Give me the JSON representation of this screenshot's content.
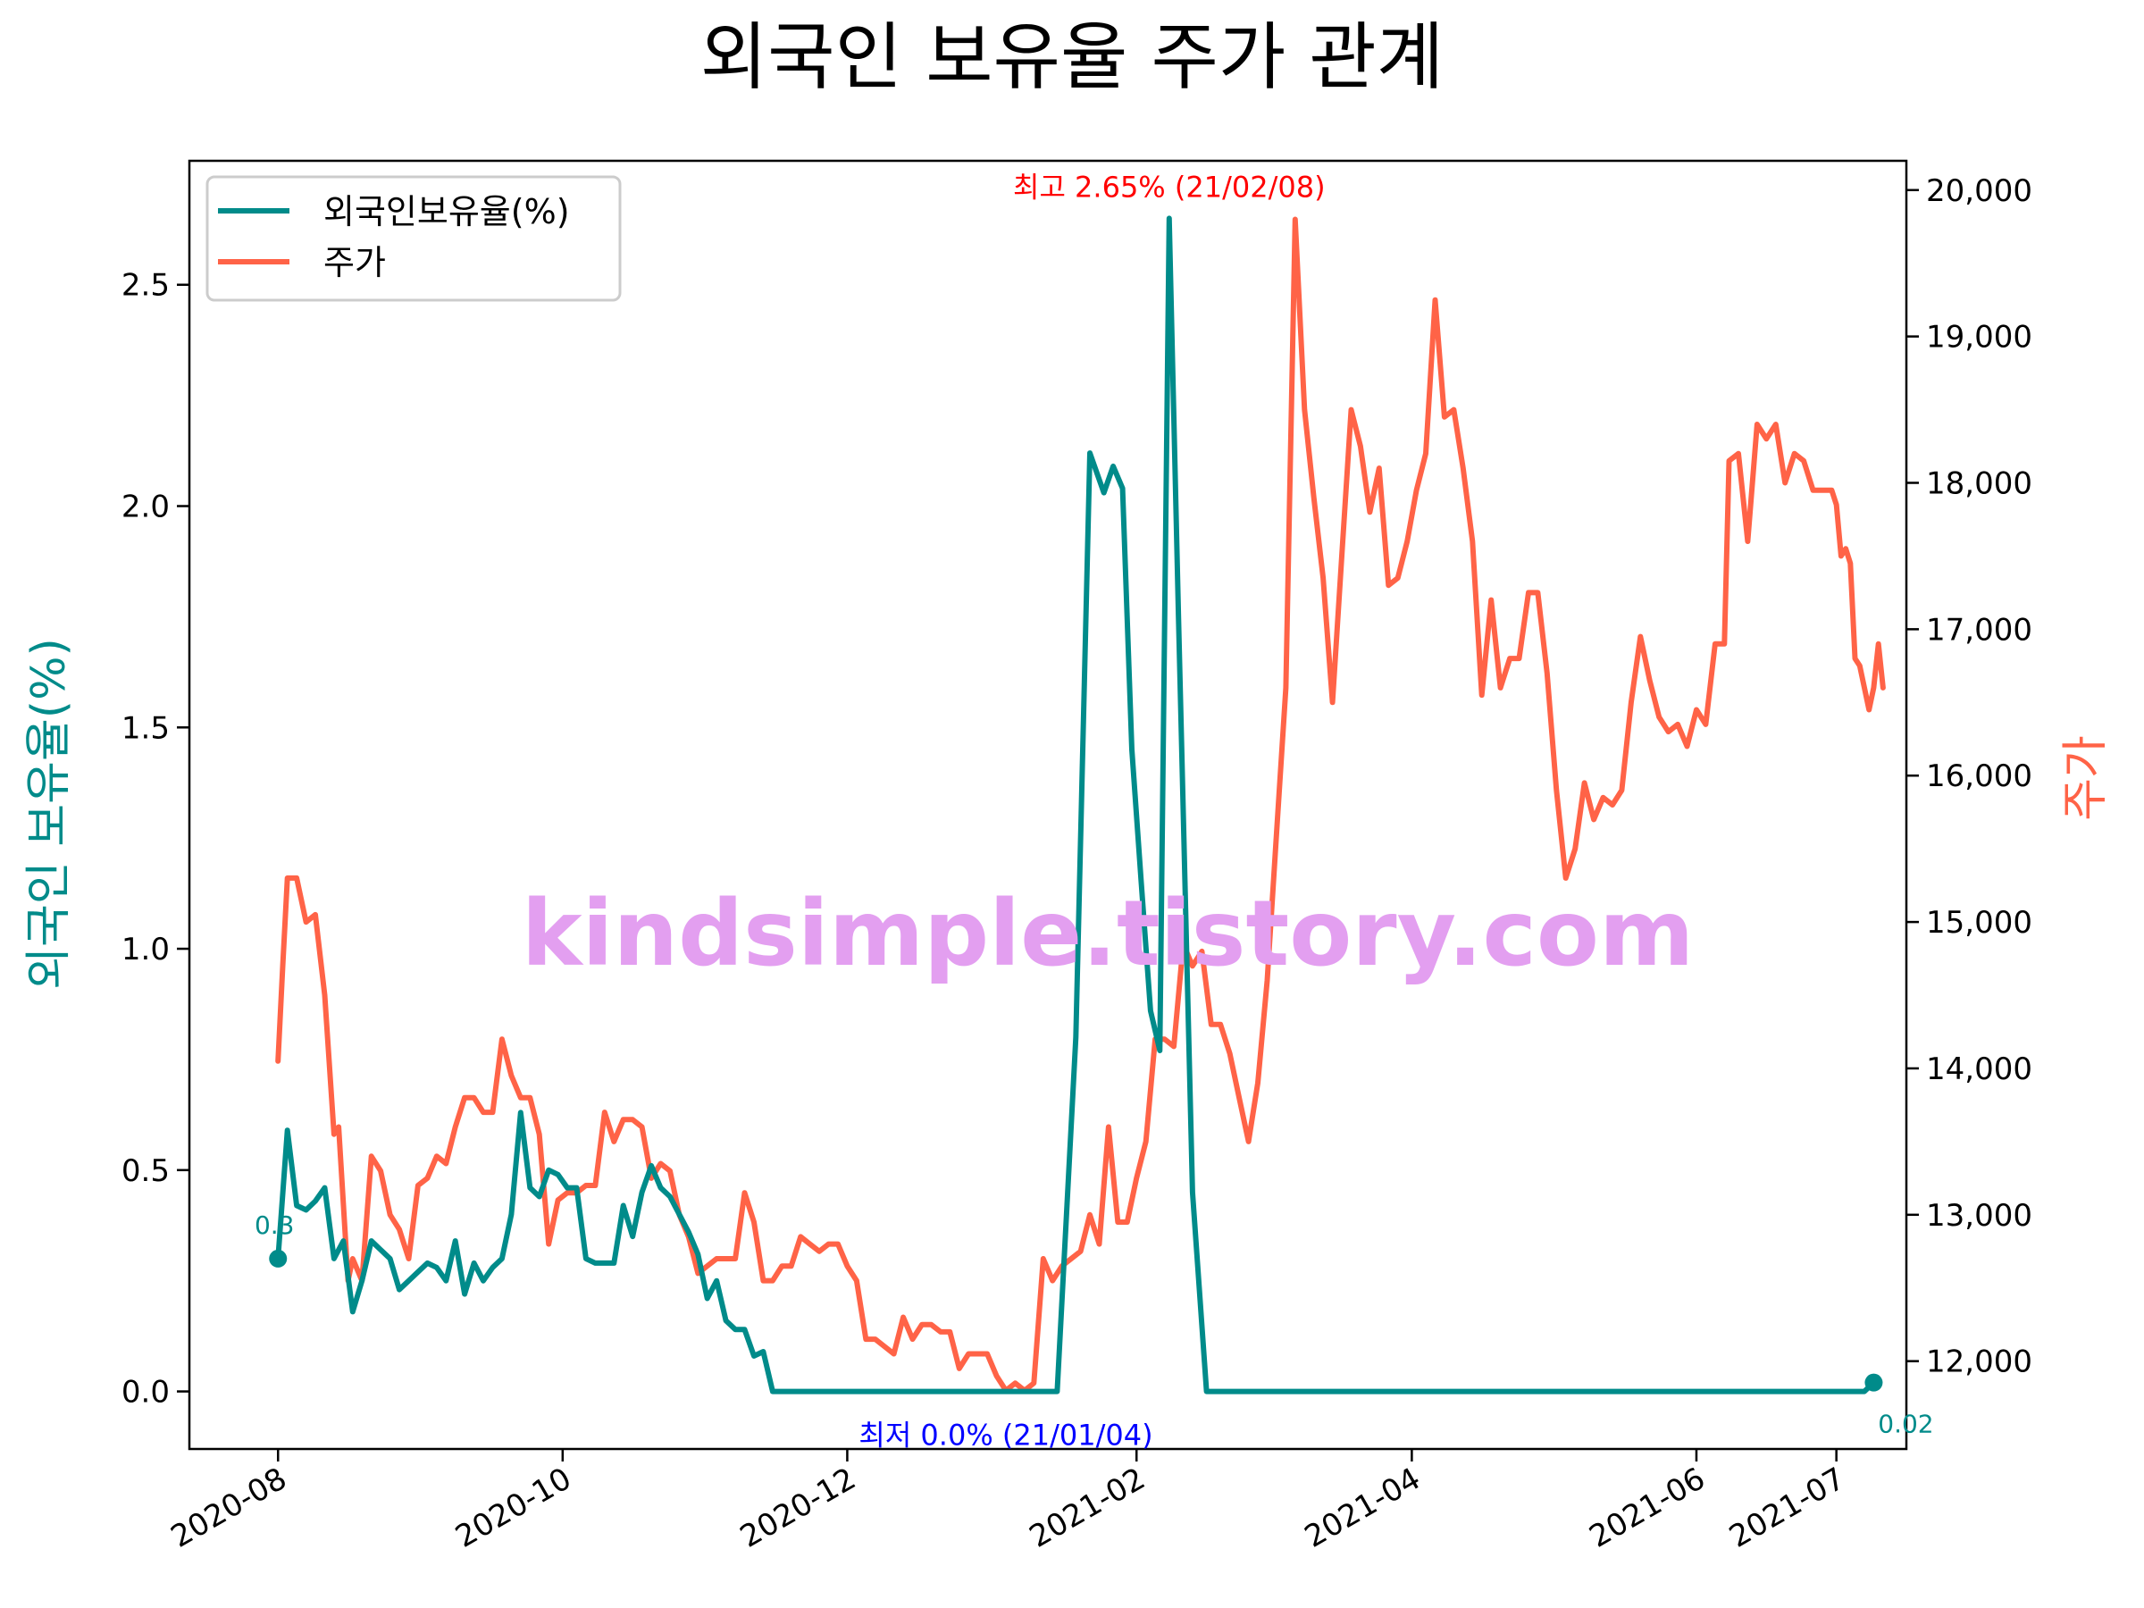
{
  "title": "외국인 보유율 주가 관계",
  "watermark": "kindsimple.tistory.com",
  "colors": {
    "ratio": "#008b8a",
    "price": "#ff6347",
    "max_annotation": "#ff0000",
    "min_annotation": "#0000ff",
    "watermark": "#e39ff0"
  },
  "chart_data": {
    "type": "line",
    "title": "외국인 보유율 주가 관계",
    "xlabel": "",
    "ylabel_left": "외국인 보유율(%)",
    "ylabel_right": "주가",
    "x_ticks": [
      "2020-08",
      "2020-10",
      "2020-12",
      "2021-02",
      "2021-04",
      "2021-06",
      "2021-07"
    ],
    "y_left_ticks": [
      "0.0",
      "0.5",
      "1.0",
      "1.5",
      "2.0",
      "2.5"
    ],
    "y_right_ticks": [
      "12,000",
      "13,000",
      "14,000",
      "15,000",
      "16,000",
      "17,000",
      "18,000",
      "19,000",
      "20,000"
    ],
    "ylim_left": [
      -0.13,
      2.78
    ],
    "ylim_right": [
      11400,
      20200
    ],
    "xlim": [
      "2020-07-13",
      "2021-07-16"
    ],
    "legend": {
      "placement": "top-left",
      "entries": [
        "외국인보유율(%)",
        "주가"
      ]
    },
    "grid": false,
    "series": [
      {
        "name": "외국인보유율(%)",
        "axis": "left",
        "color": "#008b8a",
        "points": [
          [
            "2020-08-01",
            0.3
          ],
          [
            "2020-08-03",
            0.59
          ],
          [
            "2020-08-05",
            0.42
          ],
          [
            "2020-08-07",
            0.41
          ],
          [
            "2020-08-09",
            0.43
          ],
          [
            "2020-08-11",
            0.46
          ],
          [
            "2020-08-13",
            0.3
          ],
          [
            "2020-08-15",
            0.34
          ],
          [
            "2020-08-17",
            0.18
          ],
          [
            "2020-08-19",
            0.25
          ],
          [
            "2020-08-21",
            0.34
          ],
          [
            "2020-08-23",
            0.32
          ],
          [
            "2020-08-25",
            0.3
          ],
          [
            "2020-08-27",
            0.23
          ],
          [
            "2020-08-29",
            0.25
          ],
          [
            "2020-08-31",
            0.27
          ],
          [
            "2020-09-02",
            0.29
          ],
          [
            "2020-09-04",
            0.28
          ],
          [
            "2020-09-06",
            0.25
          ],
          [
            "2020-09-08",
            0.34
          ],
          [
            "2020-09-10",
            0.22
          ],
          [
            "2020-09-12",
            0.29
          ],
          [
            "2020-09-14",
            0.25
          ],
          [
            "2020-09-16",
            0.28
          ],
          [
            "2020-09-18",
            0.3
          ],
          [
            "2020-09-20",
            0.4
          ],
          [
            "2020-09-22",
            0.63
          ],
          [
            "2020-09-24",
            0.46
          ],
          [
            "2020-09-26",
            0.44
          ],
          [
            "2020-09-28",
            0.5
          ],
          [
            "2020-09-30",
            0.49
          ],
          [
            "2020-10-02",
            0.46
          ],
          [
            "2020-10-04",
            0.46
          ],
          [
            "2020-10-06",
            0.3
          ],
          [
            "2020-10-08",
            0.29
          ],
          [
            "2020-10-10",
            0.29
          ],
          [
            "2020-10-12",
            0.29
          ],
          [
            "2020-10-14",
            0.42
          ],
          [
            "2020-10-16",
            0.35
          ],
          [
            "2020-10-18",
            0.45
          ],
          [
            "2020-10-20",
            0.51
          ],
          [
            "2020-10-22",
            0.46
          ],
          [
            "2020-10-24",
            0.44
          ],
          [
            "2020-10-26",
            0.4
          ],
          [
            "2020-10-28",
            0.36
          ],
          [
            "2020-10-30",
            0.31
          ],
          [
            "2020-11-01",
            0.21
          ],
          [
            "2020-11-03",
            0.25
          ],
          [
            "2020-11-05",
            0.16
          ],
          [
            "2020-11-07",
            0.14
          ],
          [
            "2020-11-09",
            0.14
          ],
          [
            "2020-11-11",
            0.08
          ],
          [
            "2020-11-13",
            0.09
          ],
          [
            "2020-11-15",
            0.0
          ],
          [
            "2021-01-04",
            0.0
          ],
          [
            "2021-01-15",
            0.0
          ],
          [
            "2021-01-19",
            0.8
          ],
          [
            "2021-01-22",
            2.12
          ],
          [
            "2021-01-25",
            2.03
          ],
          [
            "2021-01-27",
            2.09
          ],
          [
            "2021-01-29",
            2.04
          ],
          [
            "2021-01-31",
            1.45
          ],
          [
            "2021-02-02",
            1.15
          ],
          [
            "2021-02-04",
            0.86
          ],
          [
            "2021-02-06",
            0.77
          ],
          [
            "2021-02-08",
            2.65
          ],
          [
            "2021-02-10",
            1.75
          ],
          [
            "2021-02-13",
            0.45
          ],
          [
            "2021-02-16",
            0.0
          ],
          [
            "2021-07-07",
            0.0
          ],
          [
            "2021-07-09",
            0.02
          ]
        ]
      },
      {
        "name": "주가",
        "axis": "right",
        "color": "#ff6347",
        "points": [
          [
            "2020-08-01",
            14050
          ],
          [
            "2020-08-02",
            14700
          ],
          [
            "2020-08-03",
            15300
          ],
          [
            "2020-08-05",
            15300
          ],
          [
            "2020-08-07",
            15000
          ],
          [
            "2020-08-09",
            15050
          ],
          [
            "2020-08-11",
            14500
          ],
          [
            "2020-08-13",
            13550
          ],
          [
            "2020-08-14",
            13600
          ],
          [
            "2020-08-16",
            12550
          ],
          [
            "2020-08-17",
            12700
          ],
          [
            "2020-08-19",
            12550
          ],
          [
            "2020-08-21",
            13400
          ],
          [
            "2020-08-23",
            13300
          ],
          [
            "2020-08-25",
            13000
          ],
          [
            "2020-08-27",
            12900
          ],
          [
            "2020-08-29",
            12700
          ],
          [
            "2020-08-31",
            13200
          ],
          [
            "2020-09-02",
            13250
          ],
          [
            "2020-09-04",
            13400
          ],
          [
            "2020-09-06",
            13350
          ],
          [
            "2020-09-08",
            13600
          ],
          [
            "2020-09-10",
            13800
          ],
          [
            "2020-09-12",
            13800
          ],
          [
            "2020-09-14",
            13700
          ],
          [
            "2020-09-16",
            13700
          ],
          [
            "2020-09-18",
            14200
          ],
          [
            "2020-09-20",
            13950
          ],
          [
            "2020-09-22",
            13800
          ],
          [
            "2020-09-24",
            13800
          ],
          [
            "2020-09-26",
            13550
          ],
          [
            "2020-09-28",
            12800
          ],
          [
            "2020-09-30",
            13100
          ],
          [
            "2020-10-02",
            13150
          ],
          [
            "2020-10-04",
            13150
          ],
          [
            "2020-10-06",
            13200
          ],
          [
            "2020-10-08",
            13200
          ],
          [
            "2020-10-10",
            13700
          ],
          [
            "2020-10-12",
            13500
          ],
          [
            "2020-10-14",
            13650
          ],
          [
            "2020-10-16",
            13650
          ],
          [
            "2020-10-18",
            13600
          ],
          [
            "2020-10-20",
            13250
          ],
          [
            "2020-10-22",
            13350
          ],
          [
            "2020-10-24",
            13300
          ],
          [
            "2020-10-26",
            13000
          ],
          [
            "2020-10-28",
            12850
          ],
          [
            "2020-10-30",
            12600
          ],
          [
            "2020-11-01",
            12650
          ],
          [
            "2020-11-03",
            12700
          ],
          [
            "2020-11-05",
            12700
          ],
          [
            "2020-11-07",
            12700
          ],
          [
            "2020-11-09",
            13150
          ],
          [
            "2020-11-11",
            12950
          ],
          [
            "2020-11-13",
            12550
          ],
          [
            "2020-11-15",
            12550
          ],
          [
            "2020-11-17",
            12650
          ],
          [
            "2020-11-19",
            12650
          ],
          [
            "2020-11-21",
            12850
          ],
          [
            "2020-11-23",
            12800
          ],
          [
            "2020-11-25",
            12750
          ],
          [
            "2020-11-27",
            12800
          ],
          [
            "2020-11-29",
            12800
          ],
          [
            "2020-12-01",
            12650
          ],
          [
            "2020-12-03",
            12550
          ],
          [
            "2020-12-05",
            12150
          ],
          [
            "2020-12-07",
            12150
          ],
          [
            "2020-12-09",
            12100
          ],
          [
            "2020-12-11",
            12050
          ],
          [
            "2020-12-13",
            12300
          ],
          [
            "2020-12-15",
            12150
          ],
          [
            "2020-12-17",
            12250
          ],
          [
            "2020-12-19",
            12250
          ],
          [
            "2020-12-21",
            12200
          ],
          [
            "2020-12-23",
            12200
          ],
          [
            "2020-12-25",
            11950
          ],
          [
            "2020-12-27",
            12050
          ],
          [
            "2020-12-29",
            12050
          ],
          [
            "2020-12-31",
            12050
          ],
          [
            "2021-01-02",
            11900
          ],
          [
            "2021-01-04",
            11800
          ],
          [
            "2021-01-06",
            11850
          ],
          [
            "2021-01-08",
            11800
          ],
          [
            "2021-01-10",
            11850
          ],
          [
            "2021-01-12",
            12700
          ],
          [
            "2021-01-14",
            12550
          ],
          [
            "2021-01-16",
            12650
          ],
          [
            "2021-01-18",
            12700
          ],
          [
            "2021-01-20",
            12750
          ],
          [
            "2021-01-22",
            13000
          ],
          [
            "2021-01-24",
            12800
          ],
          [
            "2021-01-26",
            13600
          ],
          [
            "2021-01-28",
            12950
          ],
          [
            "2021-01-30",
            12950
          ],
          [
            "2021-02-01",
            13250
          ],
          [
            "2021-02-03",
            13500
          ],
          [
            "2021-02-05",
            14200
          ],
          [
            "2021-02-07",
            14200
          ],
          [
            "2021-02-09",
            14150
          ],
          [
            "2021-02-11",
            14850
          ],
          [
            "2021-02-13",
            14700
          ],
          [
            "2021-02-15",
            14800
          ],
          [
            "2021-02-17",
            14300
          ],
          [
            "2021-02-19",
            14300
          ],
          [
            "2021-02-21",
            14100
          ],
          [
            "2021-02-23",
            13800
          ],
          [
            "2021-02-25",
            13500
          ],
          [
            "2021-02-27",
            13900
          ],
          [
            "2021-03-01",
            14600
          ],
          [
            "2021-03-03",
            15600
          ],
          [
            "2021-03-05",
            16600
          ],
          [
            "2021-03-07",
            19800
          ],
          [
            "2021-03-09",
            18500
          ],
          [
            "2021-03-11",
            17900
          ],
          [
            "2021-03-13",
            17350
          ],
          [
            "2021-03-15",
            16500
          ],
          [
            "2021-03-17",
            17500
          ],
          [
            "2021-03-19",
            18500
          ],
          [
            "2021-03-21",
            18250
          ],
          [
            "2021-03-23",
            17800
          ],
          [
            "2021-03-25",
            18100
          ],
          [
            "2021-03-27",
            17300
          ],
          [
            "2021-03-29",
            17350
          ],
          [
            "2021-03-31",
            17600
          ],
          [
            "2021-04-02",
            17950
          ],
          [
            "2021-04-04",
            18200
          ],
          [
            "2021-04-06",
            19250
          ],
          [
            "2021-04-08",
            18450
          ],
          [
            "2021-04-10",
            18500
          ],
          [
            "2021-04-12",
            18100
          ],
          [
            "2021-04-14",
            17600
          ],
          [
            "2021-04-16",
            16550
          ],
          [
            "2021-04-18",
            17200
          ],
          [
            "2021-04-20",
            16600
          ],
          [
            "2021-04-22",
            16800
          ],
          [
            "2021-04-24",
            16800
          ],
          [
            "2021-04-26",
            17250
          ],
          [
            "2021-04-28",
            17250
          ],
          [
            "2021-04-30",
            16700
          ],
          [
            "2021-05-02",
            15900
          ],
          [
            "2021-05-04",
            15300
          ],
          [
            "2021-05-06",
            15500
          ],
          [
            "2021-05-08",
            15950
          ],
          [
            "2021-05-10",
            15700
          ],
          [
            "2021-05-12",
            15850
          ],
          [
            "2021-05-14",
            15800
          ],
          [
            "2021-05-16",
            15900
          ],
          [
            "2021-05-18",
            16500
          ],
          [
            "2021-05-20",
            16950
          ],
          [
            "2021-05-22",
            16650
          ],
          [
            "2021-05-24",
            16400
          ],
          [
            "2021-05-26",
            16300
          ],
          [
            "2021-05-28",
            16350
          ],
          [
            "2021-05-30",
            16200
          ],
          [
            "2021-06-01",
            16450
          ],
          [
            "2021-06-03",
            16350
          ],
          [
            "2021-06-05",
            16900
          ],
          [
            "2021-06-07",
            16900
          ],
          [
            "2021-06-08",
            18150
          ],
          [
            "2021-06-10",
            18200
          ],
          [
            "2021-06-12",
            17600
          ],
          [
            "2021-06-14",
            18400
          ],
          [
            "2021-06-16",
            18300
          ],
          [
            "2021-06-18",
            18400
          ],
          [
            "2021-06-20",
            18000
          ],
          [
            "2021-06-22",
            18200
          ],
          [
            "2021-06-24",
            18150
          ],
          [
            "2021-06-26",
            17950
          ],
          [
            "2021-06-28",
            17950
          ],
          [
            "2021-06-30",
            17950
          ],
          [
            "2021-07-01",
            17850
          ],
          [
            "2021-07-02",
            17500
          ],
          [
            "2021-07-03",
            17550
          ],
          [
            "2021-07-04",
            17450
          ],
          [
            "2021-07-05",
            16800
          ],
          [
            "2021-07-06",
            16750
          ],
          [
            "2021-07-07",
            16600
          ],
          [
            "2021-07-08",
            16450
          ],
          [
            "2021-07-09",
            16600
          ],
          [
            "2021-07-10",
            16900
          ],
          [
            "2021-07-11",
            16600
          ]
        ]
      }
    ],
    "annotations": [
      {
        "label": "최고 2.65% (21/02/08)",
        "x": "2021-02-08",
        "y": 2.65,
        "axis": "left",
        "color": "#ff0000"
      },
      {
        "label": "최저 0.0% (21/01/04)",
        "x": "2021-01-04",
        "y": 0.0,
        "axis": "left",
        "color": "#0000ff"
      },
      {
        "label": "0.3",
        "x": "2020-08-01",
        "y": 0.3,
        "axis": "left",
        "marker": true
      },
      {
        "label": "0.02",
        "x": "2021-07-09",
        "y": 0.02,
        "axis": "left",
        "marker": true
      }
    ]
  }
}
